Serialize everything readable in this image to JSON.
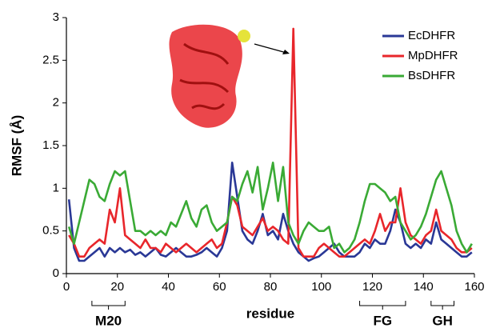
{
  "chart_data": {
    "type": "line",
    "xlabel": "residue",
    "ylabel": "RMSF (Å)",
    "x": [
      1,
      3,
      5,
      7,
      9,
      11,
      13,
      15,
      17,
      19,
      21,
      23,
      25,
      27,
      29,
      31,
      33,
      35,
      37,
      39,
      41,
      43,
      45,
      47,
      49,
      51,
      53,
      55,
      57,
      59,
      61,
      63,
      65,
      67,
      69,
      71,
      73,
      75,
      77,
      79,
      81,
      83,
      85,
      87,
      89,
      91,
      93,
      95,
      97,
      99,
      101,
      103,
      105,
      107,
      109,
      111,
      113,
      115,
      117,
      119,
      121,
      123,
      125,
      127,
      129,
      131,
      133,
      135,
      137,
      139,
      141,
      143,
      145,
      147,
      149,
      151,
      153,
      155,
      157,
      159
    ],
    "series": [
      {
        "name": "EcDHFR",
        "color": "#2a3896",
        "values": [
          0.87,
          0.3,
          0.15,
          0.15,
          0.2,
          0.25,
          0.3,
          0.2,
          0.3,
          0.25,
          0.3,
          0.25,
          0.28,
          0.22,
          0.25,
          0.2,
          0.25,
          0.3,
          0.22,
          0.2,
          0.25,
          0.3,
          0.25,
          0.2,
          0.2,
          0.22,
          0.25,
          0.3,
          0.25,
          0.2,
          0.3,
          0.5,
          1.3,
          0.9,
          0.5,
          0.4,
          0.35,
          0.5,
          0.7,
          0.45,
          0.5,
          0.4,
          0.7,
          0.5,
          0.35,
          0.25,
          0.2,
          0.15,
          0.18,
          0.2,
          0.25,
          0.3,
          0.35,
          0.25,
          0.2,
          0.2,
          0.2,
          0.25,
          0.35,
          0.3,
          0.4,
          0.35,
          0.35,
          0.5,
          0.75,
          0.6,
          0.35,
          0.3,
          0.35,
          0.3,
          0.4,
          0.35,
          0.6,
          0.4,
          0.35,
          0.3,
          0.25,
          0.2,
          0.2,
          0.25
        ]
      },
      {
        "name": "MpDHFR",
        "color": "#e8262b",
        "values": [
          0.45,
          0.35,
          0.2,
          0.2,
          0.3,
          0.35,
          0.4,
          0.35,
          0.75,
          0.6,
          1.0,
          0.45,
          0.4,
          0.35,
          0.3,
          0.4,
          0.3,
          0.3,
          0.25,
          0.35,
          0.3,
          0.25,
          0.3,
          0.35,
          0.3,
          0.25,
          0.3,
          0.35,
          0.4,
          0.3,
          0.35,
          0.6,
          0.9,
          0.8,
          0.55,
          0.5,
          0.45,
          0.55,
          0.65,
          0.5,
          0.55,
          0.5,
          0.4,
          0.35,
          2.87,
          0.3,
          0.2,
          0.2,
          0.2,
          0.3,
          0.35,
          0.3,
          0.25,
          0.2,
          0.2,
          0.25,
          0.3,
          0.35,
          0.4,
          0.35,
          0.5,
          0.7,
          0.5,
          0.6,
          0.6,
          1.0,
          0.6,
          0.45,
          0.4,
          0.35,
          0.45,
          0.5,
          0.75,
          0.5,
          0.45,
          0.4,
          0.3,
          0.25,
          0.25,
          0.3
        ]
      },
      {
        "name": "BsDHFR",
        "color": "#3aaa35",
        "values": [
          0.55,
          0.35,
          0.6,
          0.85,
          1.1,
          1.05,
          0.9,
          0.85,
          1.05,
          1.2,
          1.15,
          1.2,
          0.85,
          0.5,
          0.5,
          0.45,
          0.5,
          0.45,
          0.5,
          0.45,
          0.6,
          0.55,
          0.7,
          0.85,
          0.65,
          0.55,
          0.75,
          0.8,
          0.6,
          0.5,
          0.55,
          0.6,
          0.9,
          0.85,
          1.05,
          1.2,
          0.95,
          1.25,
          0.75,
          1.0,
          1.3,
          0.85,
          1.25,
          0.6,
          0.45,
          0.35,
          0.5,
          0.6,
          0.55,
          0.5,
          0.5,
          0.55,
          0.3,
          0.35,
          0.25,
          0.3,
          0.4,
          0.6,
          0.85,
          1.05,
          1.05,
          1.0,
          0.95,
          0.85,
          0.9,
          0.6,
          0.5,
          0.4,
          0.45,
          0.55,
          0.7,
          0.9,
          1.1,
          1.2,
          1.0,
          0.8,
          0.5,
          0.35,
          0.25,
          0.35
        ]
      }
    ],
    "xlim": [
      0,
      160
    ],
    "xticks": [
      0,
      20,
      40,
      60,
      80,
      100,
      120,
      140,
      160
    ],
    "ylim": [
      0,
      3
    ],
    "yticks": [
      0,
      0.5,
      1,
      1.5,
      2,
      2.5,
      3
    ],
    "legend": "upper right",
    "annotations": [
      {
        "text": "M20",
        "start": 10,
        "end": 23
      },
      {
        "text": "FG",
        "start": 115,
        "end": 133
      },
      {
        "text": "GH",
        "start": 143,
        "end": 152
      }
    ]
  }
}
